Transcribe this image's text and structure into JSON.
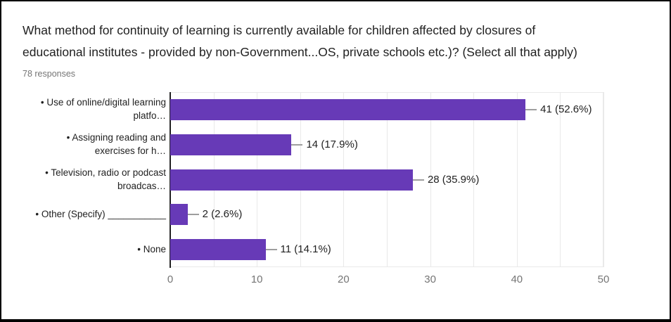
{
  "chart_data": {
    "type": "bar",
    "orientation": "horizontal",
    "title": "What method for continuity of learning is currently available for children affected by closures of educational institutes - provided by non-Government...OS, private schools etc.)? (Select all that apply)",
    "title_lines": [
      "What method for continuity of learning is currently available for children affected by closures of",
      "educational institutes - provided by non-Government...OS, private schools etc.)? (Select all that apply)"
    ],
    "subtitle": "78 responses",
    "categories": [
      "• Use of online/digital learning platfo…",
      "• Assigning reading and exercises for h…",
      "• Television, radio or podcast broadcas…",
      "• Other (Specify) ___________",
      "• None"
    ],
    "category_label_lines": [
      [
        "• Use of online/digital learning",
        "platfo…"
      ],
      [
        "• Assigning reading and",
        "exercises for h…"
      ],
      [
        "• Television, radio or podcast",
        "broadcas…"
      ],
      [
        "• Other (Specify) ___________"
      ],
      [
        "• None"
      ]
    ],
    "values": [
      41,
      14,
      28,
      2,
      11
    ],
    "percentages": [
      52.6,
      17.9,
      35.9,
      2.6,
      14.1
    ],
    "value_labels": [
      "41 (52.6%)",
      "14 (17.9%)",
      "28 (35.9%)",
      "2 (2.6%)",
      "11 (14.1%)"
    ],
    "xlim": [
      0,
      50
    ],
    "xticks": [
      "0",
      "10",
      "20",
      "30",
      "40",
      "50"
    ],
    "grid_step": 5,
    "grid": "on",
    "legend": "none",
    "colors": {
      "bar": "#673ab7",
      "axis_line": "#212121",
      "gridline": "#e9e9e9",
      "tick_label": "#757575",
      "category_label": "#212121",
      "annotation": "#212121",
      "connector": "#9e9e9e",
      "title": "#212121",
      "subtitle": "#757575",
      "border": "#000000",
      "background": "#ffffff"
    }
  }
}
